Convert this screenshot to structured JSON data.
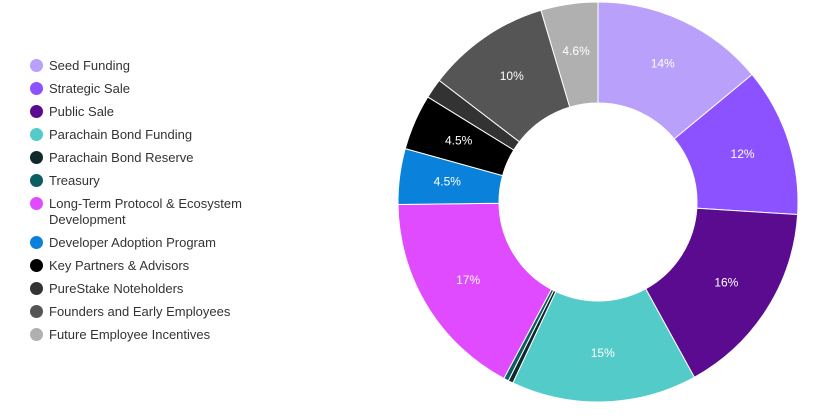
{
  "chart_data": {
    "type": "pie",
    "donut": true,
    "title": "",
    "legend_position": "left",
    "categories": [
      "Seed Funding",
      "Strategic Sale",
      "Public Sale",
      "Parachain Bond Funding",
      "Parachain Bond Reserve",
      "Treasury",
      "Long-Term Protocol & Ecosystem Development",
      "Developer Adoption Program",
      "Key Partners & Advisors",
      "PureStake Noteholders",
      "Founders and Early Employees",
      "Future Employee Incentives"
    ],
    "values": [
      14,
      12,
      16,
      15,
      0.4,
      0.4,
      17,
      4.5,
      4.5,
      1.6,
      10,
      4.6
    ],
    "data_labels": [
      "14%",
      "12%",
      "16%",
      "15%",
      "",
      "",
      "17%",
      "4.5%",
      "4.5%",
      "",
      "10%",
      "4.6%"
    ],
    "colors": [
      "#b9a0fa",
      "#8c52ff",
      "#5a0b8f",
      "#53cbc8",
      "#0f2a2b",
      "#0b5e63",
      "#e04bff",
      "#0a82dc",
      "#000000",
      "#333333",
      "#555555",
      "#b0b0b0"
    ]
  }
}
